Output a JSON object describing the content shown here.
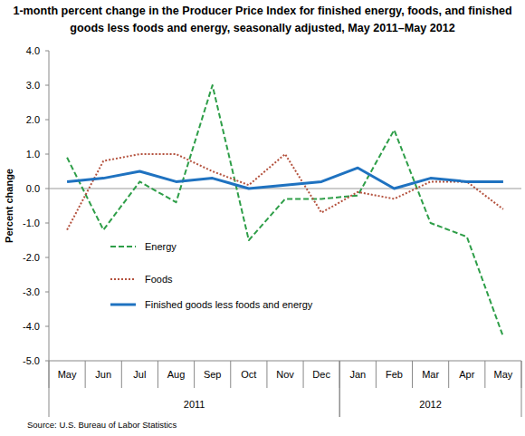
{
  "chart_data": {
    "type": "line",
    "title": "1-month percent change in the Producer Price Index for finished energy, foods, and finished goods less foods and energy, seasonally adjusted, May 2011–May 2012",
    "y_label": "Percent change",
    "source": "Source: U.S. Bureau of Labor Statistics",
    "categories": [
      "May",
      "Jun",
      "Jul",
      "Aug",
      "Sep",
      "Oct",
      "Nov",
      "Dec",
      "Jan",
      "Feb",
      "Mar",
      "Apr",
      "May"
    ],
    "category_groups": [
      {
        "label": "2011",
        "start": 0,
        "end": 7
      },
      {
        "label": "2012",
        "start": 8,
        "end": 12
      }
    ],
    "series": [
      {
        "name": "Energy",
        "color": "#2e9e48",
        "line_style": "dashed",
        "values": [
          0.9,
          -1.2,
          0.2,
          -0.4,
          3.0,
          -1.5,
          -0.3,
          -0.3,
          -0.2,
          1.7,
          -1.0,
          -1.4,
          -4.3
        ]
      },
      {
        "name": "Foods",
        "color": "#b4523e",
        "line_style": "dotted",
        "values": [
          -1.2,
          0.8,
          1.0,
          1.0,
          0.5,
          0.1,
          1.0,
          -0.7,
          -0.1,
          -0.3,
          0.2,
          0.2,
          -0.6
        ]
      },
      {
        "name": "Finished goods less foods and energy",
        "color": "#1f72c0",
        "line_style": "solid",
        "values": [
          0.2,
          0.3,
          0.5,
          0.2,
          0.3,
          0.0,
          0.1,
          0.2,
          0.6,
          0.0,
          0.3,
          0.2,
          0.2
        ]
      }
    ],
    "ylim": [
      -5,
      4
    ],
    "yticks": [
      {
        "value": -5,
        "label": "-5.0"
      },
      {
        "value": -4,
        "label": "-4.0"
      },
      {
        "value": -3,
        "label": "-3.0"
      },
      {
        "value": -2,
        "label": "-2.0"
      },
      {
        "value": -1,
        "label": "-1.0"
      },
      {
        "value": 0,
        "label": "0.0"
      },
      {
        "value": 1,
        "label": "1.0"
      },
      {
        "value": 2,
        "label": "2.0"
      },
      {
        "value": 3,
        "label": "3.0"
      },
      {
        "value": 4,
        "label": "4.0"
      }
    ],
    "legend": "lower left",
    "grid": false
  }
}
